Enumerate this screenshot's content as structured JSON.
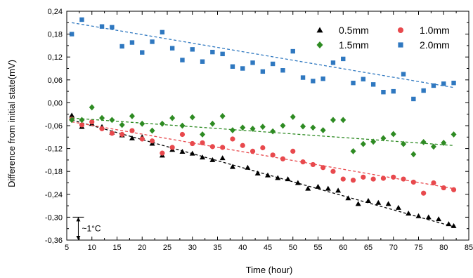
{
  "chart_data": {
    "type": "scatter",
    "title": "",
    "xlabel": "Time (hour)",
    "ylabel": "Difference from initial state(mV)",
    "xlim": [
      5,
      85
    ],
    "ylim": [
      -0.36,
      0.24
    ],
    "x_ticks": [
      "5",
      "10",
      "15",
      "20",
      "25",
      "30",
      "35",
      "40",
      "45",
      "50",
      "55",
      "60",
      "65",
      "70",
      "75",
      "80",
      "85"
    ],
    "y_ticks": [
      "-0,36",
      "-0,30",
      "-0,24",
      "-0,18",
      "-0,12",
      "-0,06",
      "0,00",
      "0,06",
      "0,12",
      "0,18",
      "0,24"
    ],
    "grid": false,
    "legend_position": "top-right",
    "annotation": {
      "text": "~1°C",
      "from": -0.3,
      "to": -0.36,
      "x": 7.3
    },
    "series": [
      {
        "name": "0.5mm",
        "marker": "triangle",
        "color": "#000000",
        "trend": [
          [
            6,
            -0.045
          ],
          [
            82,
            -0.325
          ]
        ],
        "x": [
          6,
          8,
          10,
          12,
          14,
          16,
          18,
          20,
          22,
          24,
          26,
          28,
          30,
          32,
          34,
          36,
          38,
          41,
          43,
          45,
          47,
          49,
          51,
          53,
          55,
          57,
          59,
          61,
          63,
          65,
          67,
          69,
          71,
          73,
          75,
          77,
          79,
          81,
          82
        ],
        "y": [
          -0.033,
          -0.063,
          -0.055,
          -0.063,
          -0.078,
          -0.085,
          -0.093,
          -0.09,
          -0.107,
          -0.138,
          -0.123,
          -0.128,
          -0.133,
          -0.143,
          -0.15,
          -0.145,
          -0.168,
          -0.17,
          -0.185,
          -0.19,
          -0.197,
          -0.2,
          -0.21,
          -0.225,
          -0.22,
          -0.225,
          -0.23,
          -0.25,
          -0.265,
          -0.257,
          -0.262,
          -0.265,
          -0.275,
          -0.29,
          -0.297,
          -0.3,
          -0.305,
          -0.318,
          -0.323
        ]
      },
      {
        "name": "1.0mm",
        "marker": "circle",
        "color": "#e8494d",
        "trend": [
          [
            6,
            -0.05
          ],
          [
            82,
            -0.225
          ]
        ],
        "x": [
          6,
          8,
          10,
          12,
          14,
          16,
          18,
          20,
          22,
          24,
          26,
          28,
          30,
          32,
          34,
          36,
          38,
          40,
          42,
          44,
          46,
          48,
          50,
          52,
          54,
          56,
          58,
          60,
          62,
          64,
          66,
          68,
          70,
          72,
          74,
          76,
          78,
          80,
          82
        ],
        "y": [
          -0.043,
          -0.058,
          -0.05,
          -0.068,
          -0.08,
          -0.083,
          -0.073,
          -0.095,
          -0.1,
          -0.132,
          -0.117,
          -0.083,
          -0.107,
          -0.105,
          -0.115,
          -0.117,
          -0.095,
          -0.112,
          -0.127,
          -0.118,
          -0.137,
          -0.147,
          -0.127,
          -0.155,
          -0.162,
          -0.17,
          -0.18,
          -0.2,
          -0.203,
          -0.195,
          -0.2,
          -0.198,
          -0.195,
          -0.2,
          -0.208,
          -0.237,
          -0.21,
          -0.223,
          -0.228
        ]
      },
      {
        "name": "1.5mm",
        "marker": "diamond",
        "color": "#2e8b23",
        "trend": [
          [
            6,
            -0.04
          ],
          [
            82,
            -0.112
          ]
        ],
        "x": [
          6,
          8,
          10,
          12,
          14,
          16,
          18,
          20,
          22,
          24,
          26,
          28,
          30,
          32,
          34,
          36,
          38,
          40,
          42,
          44,
          46,
          48,
          50,
          52,
          54,
          56,
          58,
          60,
          62,
          64,
          66,
          68,
          70,
          72,
          74,
          76,
          78,
          80,
          82
        ],
        "y": [
          -0.045,
          -0.045,
          -0.012,
          -0.04,
          -0.045,
          -0.058,
          -0.035,
          -0.055,
          -0.073,
          -0.055,
          -0.04,
          -0.06,
          -0.038,
          -0.083,
          -0.055,
          -0.035,
          -0.072,
          -0.065,
          -0.068,
          -0.063,
          -0.075,
          -0.06,
          -0.037,
          -0.062,
          -0.065,
          -0.072,
          -0.045,
          -0.045,
          -0.127,
          -0.108,
          -0.102,
          -0.093,
          -0.082,
          -0.108,
          -0.135,
          -0.103,
          -0.115,
          -0.105,
          -0.083
        ]
      },
      {
        "name": "2.0mm",
        "marker": "square",
        "color": "#2f78c0",
        "trend": [
          [
            6,
            0.21
          ],
          [
            82,
            0.04
          ]
        ],
        "x": [
          6,
          8,
          12,
          14,
          16,
          18,
          20,
          22,
          24,
          26,
          28,
          30,
          32,
          34,
          36,
          38,
          40,
          42,
          44,
          46,
          48,
          50,
          52,
          54,
          56,
          58,
          60,
          62,
          64,
          66,
          68,
          70,
          72,
          74,
          76,
          78,
          80,
          82
        ],
        "y": [
          0.18,
          0.218,
          0.2,
          0.198,
          0.148,
          0.158,
          0.132,
          0.16,
          0.185,
          0.143,
          0.112,
          0.14,
          0.108,
          0.133,
          0.128,
          0.095,
          0.09,
          0.105,
          0.082,
          0.102,
          0.085,
          0.135,
          0.066,
          0.057,
          0.063,
          0.105,
          0.115,
          0.052,
          0.062,
          0.048,
          0.028,
          0.03,
          0.075,
          0.01,
          0.032,
          0.045,
          0.05,
          0.052
        ]
      }
    ]
  }
}
